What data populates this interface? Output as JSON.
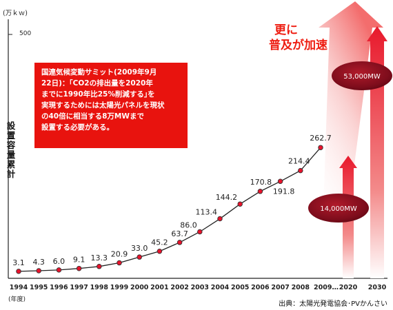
{
  "chart_data": {
    "type": "line",
    "x": [
      "1994",
      "1995",
      "1996",
      "1997",
      "1998",
      "1999",
      "2000",
      "2001",
      "2002",
      "2003",
      "2004",
      "2005",
      "2006",
      "2007",
      "2008",
      "2009"
    ],
    "values": [
      3.1,
      4.3,
      6.0,
      9.1,
      13.3,
      20.9,
      33.0,
      45.2,
      63.7,
      86.0,
      113.4,
      144.2,
      170.8,
      191.8,
      214.4,
      262.7
    ],
    "value_labels": [
      "3.1",
      "4.3",
      "6.0",
      "9.1",
      "13.3",
      "20.9",
      "33.0",
      "45.2",
      "63.7",
      "86.0",
      "113.4",
      "144.2",
      "170.8",
      "191.8",
      "214.4",
      "262.7"
    ],
    "x_tick_labels": [
      "1994",
      "1995",
      "1996",
      "1997",
      "1998",
      "1999",
      "2000",
      "2001",
      "2002",
      "2003",
      "2004",
      "2005",
      "2006",
      "2007",
      "2008",
      "2009…",
      "2020",
      "2030"
    ],
    "y_unit": "(万ｋｗ)",
    "y_tick": "500",
    "ylabel": "設置容量累計",
    "x_unit": "(年度)",
    "grid": false,
    "projections": [
      {
        "year": "2020",
        "label": "14,000MW"
      },
      {
        "year": "2030",
        "label": "53,000MW"
      }
    ],
    "colors": {
      "line": "#222222",
      "marker": "#e8132c",
      "accent": "#e8130e",
      "ellipse": "#8a1020"
    }
  },
  "note": {
    "lines": [
      "国連気候変動サミット(2009年9月",
      "22日)：｢CO2の排出量を2020年",
      "までに1990年比25%削減する｣を",
      "実現するためには太陽光パネルを現状",
      "の40倍に相当する8万MWまで",
      "設置する必要がある。"
    ]
  },
  "headline": {
    "line1": "更に",
    "line2": "普及が加速"
  },
  "source": "出典：太陽光発電協会･PVかんさい"
}
